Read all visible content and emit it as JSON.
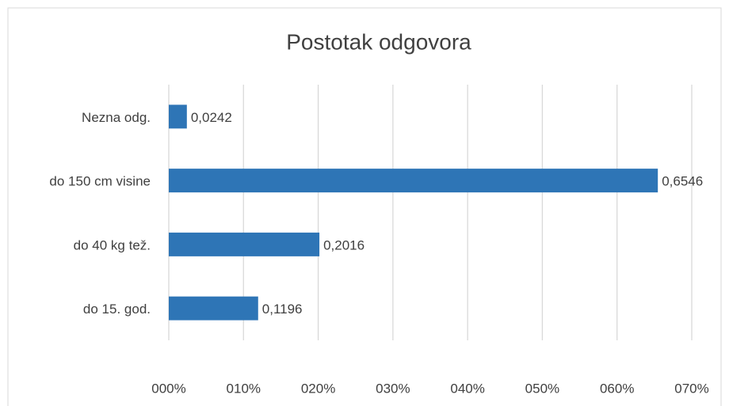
{
  "chart_data": {
    "type": "bar",
    "orientation": "horizontal",
    "title": "Postotak odgovora",
    "categories": [
      "Nezna odg.",
      "do 150 cm visine",
      "do 40 kg tež.",
      "do 15. god."
    ],
    "values": [
      0.0242,
      0.6546,
      0.2016,
      0.1196
    ],
    "value_labels": [
      "0,0242",
      "0,6546",
      "0,2016",
      "0,1196"
    ],
    "color": "#2e75b6",
    "xlim": [
      0,
      0.7
    ],
    "xticks": [
      {
        "value": 0,
        "label": "000%"
      },
      {
        "value": 0.1,
        "label": "010%"
      },
      {
        "value": 0.2,
        "label": "020%"
      },
      {
        "value": 0.3,
        "label": "030%"
      },
      {
        "value": 0.4,
        "label": "040%"
      },
      {
        "value": 0.5,
        "label": "050%"
      },
      {
        "value": 0.6,
        "label": "060%"
      },
      {
        "value": 0.7,
        "label": "070%"
      }
    ],
    "grid": true
  }
}
